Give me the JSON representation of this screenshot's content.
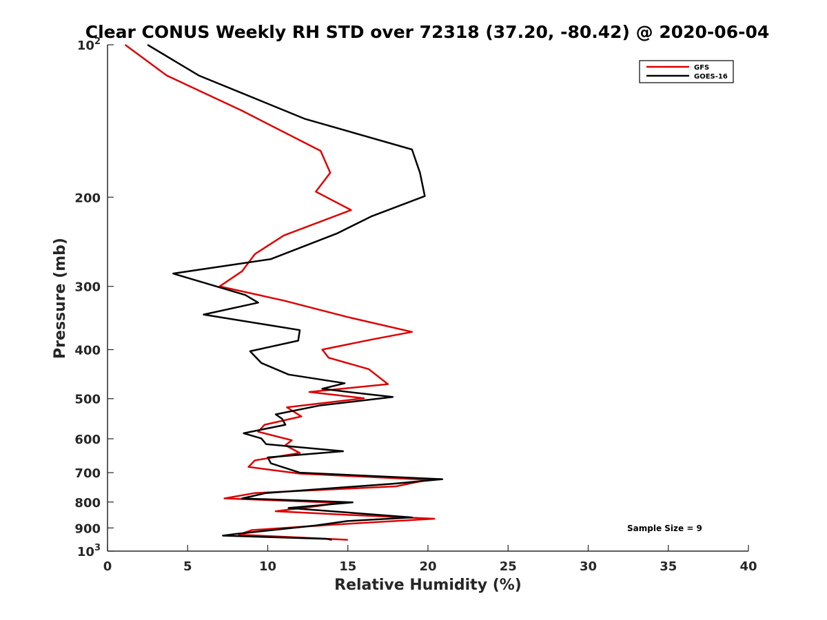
{
  "chart_data": {
    "type": "line",
    "title": "Clear CONUS Weekly RH STD over 72318 (37.20, -80.42) @ 2020-06-04",
    "xlabel": "Relative Humidity (%)",
    "ylabel": "Pressure (mb)",
    "xlim": [
      0,
      40
    ],
    "ylim": [
      100,
      1000
    ],
    "y_scale": "log",
    "y_reversed": true,
    "grid": false,
    "legend_position": "top-right",
    "x_ticks": [
      "0",
      "5",
      "10",
      "15",
      "20",
      "25",
      "30",
      "35",
      "40"
    ],
    "y_ticks": [
      {
        "value": 100,
        "base": "10",
        "exp": "2"
      },
      {
        "value": 200,
        "label": "200"
      },
      {
        "value": 300,
        "label": "300"
      },
      {
        "value": 400,
        "label": "400"
      },
      {
        "value": 500,
        "label": "500"
      },
      {
        "value": 600,
        "label": "600"
      },
      {
        "value": 700,
        "label": "700"
      },
      {
        "value": 800,
        "label": "800"
      },
      {
        "value": 900,
        "label": "900"
      },
      {
        "value": 1000,
        "base": "10",
        "exp": "3"
      }
    ],
    "annotation": "Sample Size = 9",
    "series": [
      {
        "name": "GFS",
        "color": "#dd0000",
        "points": [
          [
            1.1,
            100
          ],
          [
            3.7,
            115
          ],
          [
            8.4,
            135
          ],
          [
            13.3,
            162
          ],
          [
            13.9,
            179
          ],
          [
            13.0,
            195
          ],
          [
            15.2,
            212
          ],
          [
            11.0,
            238
          ],
          [
            9.2,
            259
          ],
          [
            8.4,
            280
          ],
          [
            7.0,
            300
          ],
          [
            11.0,
            320
          ],
          [
            15.0,
            345
          ],
          [
            19.0,
            369
          ],
          [
            16.5,
            382
          ],
          [
            13.4,
            400
          ],
          [
            13.8,
            415
          ],
          [
            16.3,
            437
          ],
          [
            17.5,
            468
          ],
          [
            12.6,
            485
          ],
          [
            16.0,
            499
          ],
          [
            11.2,
            520
          ],
          [
            12.1,
            542
          ],
          [
            9.8,
            563
          ],
          [
            9.4,
            581
          ],
          [
            11.5,
            604
          ],
          [
            11.1,
            618
          ],
          [
            12.0,
            640
          ],
          [
            9.2,
            662
          ],
          [
            8.8,
            682
          ],
          [
            12.0,
            703
          ],
          [
            20.0,
            723
          ],
          [
            18.0,
            745
          ],
          [
            9.2,
            768
          ],
          [
            7.3,
            787
          ],
          [
            14.5,
            803
          ],
          [
            12.7,
            818
          ],
          [
            10.5,
            834
          ],
          [
            15.0,
            848
          ],
          [
            20.4,
            863
          ],
          [
            14.0,
            887
          ],
          [
            9.0,
            909
          ],
          [
            8.2,
            928
          ],
          [
            13.5,
            945
          ],
          [
            15.0,
            950
          ]
        ]
      },
      {
        "name": "GOES-16",
        "color": "#000000",
        "points": [
          [
            2.5,
            100
          ],
          [
            5.7,
            115
          ],
          [
            8.5,
            125
          ],
          [
            12.3,
            140
          ],
          [
            19.0,
            161
          ],
          [
            19.5,
            179
          ],
          [
            19.8,
            199
          ],
          [
            16.5,
            218
          ],
          [
            14.3,
            236
          ],
          [
            10.2,
            265
          ],
          [
            4.1,
            283
          ],
          [
            8.6,
            312
          ],
          [
            9.4,
            323
          ],
          [
            6.0,
            341
          ],
          [
            12.0,
            366
          ],
          [
            11.9,
            384
          ],
          [
            8.9,
            403
          ],
          [
            9.6,
            425
          ],
          [
            11.3,
            448
          ],
          [
            14.8,
            466
          ],
          [
            13.4,
            478
          ],
          [
            15.5,
            487
          ],
          [
            17.8,
            496
          ],
          [
            13.2,
            516
          ],
          [
            10.5,
            537
          ],
          [
            10.9,
            548
          ],
          [
            11.1,
            563
          ],
          [
            8.5,
            585
          ],
          [
            9.6,
            599
          ],
          [
            9.9,
            615
          ],
          [
            14.7,
            635
          ],
          [
            10.0,
            653
          ],
          [
            10.2,
            671
          ],
          [
            12.0,
            700
          ],
          [
            20.9,
            721
          ],
          [
            17.8,
            736
          ],
          [
            9.9,
            768
          ],
          [
            8.4,
            787
          ],
          [
            15.3,
            801
          ],
          [
            11.3,
            822
          ],
          [
            19.0,
            858
          ],
          [
            15.0,
            872
          ],
          [
            13.0,
            890
          ],
          [
            8.0,
            925
          ],
          [
            7.2,
            932
          ],
          [
            13.7,
            946
          ],
          [
            14.0,
            950
          ]
        ]
      }
    ]
  }
}
